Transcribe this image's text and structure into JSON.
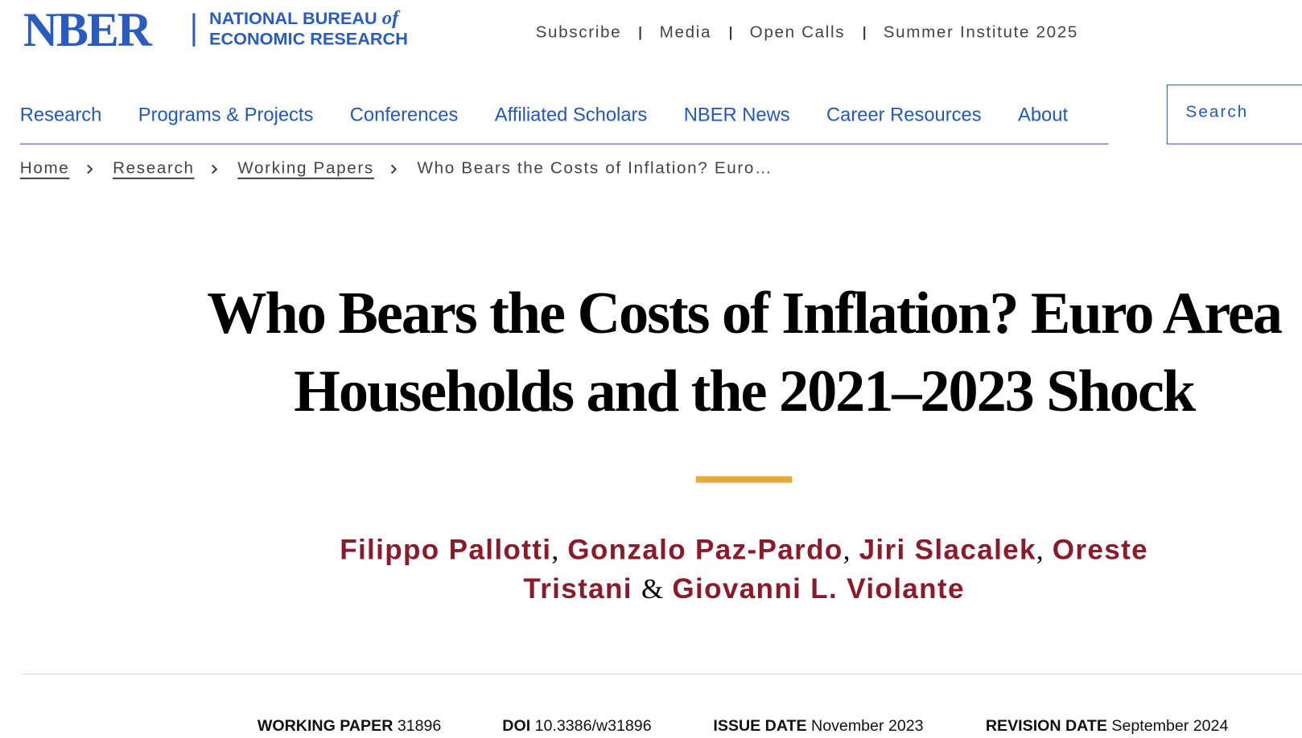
{
  "header": {
    "logo": {
      "mark": "NBER",
      "line1": "NATIONAL BUREAU",
      "line1_italic": "of",
      "line2": "ECONOMIC RESEARCH"
    },
    "top_links": [
      "Subscribe",
      "Media",
      "Open Calls",
      "Summer Institute 2025"
    ],
    "nav": [
      "Research",
      "Programs & Projects",
      "Conferences",
      "Affiliated Scholars",
      "NBER News",
      "Career Resources",
      "About"
    ],
    "search_placeholder": "Search"
  },
  "breadcrumb": [
    "Home",
    "Research",
    "Working Papers",
    "Who Bears the Costs of Inflation? Euro…"
  ],
  "article": {
    "title_line1": "Who Bears the Costs of Inflation? Euro Area",
    "title_line2": "Households and the 2021–2023 Shock",
    "authors": [
      "Filippo Pallotti",
      "Gonzalo Paz-Pardo",
      "Jiri Slacalek",
      "Oreste Tristani",
      "Giovanni L. Violante"
    ],
    "author_separators": [
      ",",
      ",",
      ",",
      "&"
    ],
    "meta": [
      {
        "label": "WORKING PAPER",
        "value": "31896"
      },
      {
        "label": "DOI",
        "value": "10.3386/w31896"
      },
      {
        "label": "ISSUE DATE",
        "value": "November 2023"
      },
      {
        "label": "REVISION DATE",
        "value": "September 2024"
      }
    ]
  }
}
